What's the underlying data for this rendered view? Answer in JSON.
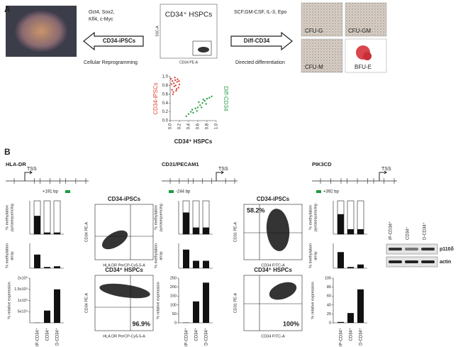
{
  "panel_a": {
    "label": "A",
    "factors": [
      "Oct4, Sox2,",
      "Klf4, c-Myc"
    ],
    "reprogram_arrow": "CD34-iPSCs",
    "reprogram_caption": "Cellular Reprogramming",
    "source_title": "CD34⁺ HSPCs",
    "source_x_label": "CD34 PE-A",
    "source_y_label": "SSC-A",
    "cytokines": "SCF,GM-CSF, IL-3, Epo",
    "diff_arrow": "Diff-CD34",
    "diff_caption": "Directed differentiation",
    "colonies": [
      "CFU-G",
      "CFU-GM",
      "CFU-M",
      "BFU-E"
    ],
    "chart_data": {
      "type": "scatter",
      "x_label": "CD34⁺ HSPCs",
      "xlim": [
        0,
        1
      ],
      "ylim": [
        0,
        1
      ],
      "xticks": [
        {
          "value": 0,
          "label": "0.0"
        },
        {
          "value": 0.2,
          "label": "0.2"
        },
        {
          "value": 0.4,
          "label": "0.4"
        },
        {
          "value": 0.6,
          "label": "0.6"
        },
        {
          "value": 0.8,
          "label": "0.8"
        },
        {
          "value": 1,
          "label": "1.0"
        }
      ],
      "yticks": [
        {
          "value": 0,
          "label": "0.0"
        },
        {
          "value": 0.2,
          "label": "0.2"
        },
        {
          "value": 0.4,
          "label": "0.4"
        },
        {
          "value": 0.6,
          "label": "0.6"
        },
        {
          "value": 0.8,
          "label": "0.8"
        },
        {
          "value": 1,
          "label": "1.0"
        }
      ],
      "series": [
        {
          "name": "CD34-iPSCs",
          "color": "#e0443a",
          "x": [
            0.02,
            0.05,
            0.08,
            0.1,
            0.12,
            0.15,
            0.18,
            0.04,
            0.07,
            0.11,
            0.14,
            0.2,
            0.06,
            0.09,
            0.16,
            0.03,
            0.13,
            0.19
          ],
          "y": [
            0.95,
            0.9,
            0.85,
            0.98,
            0.8,
            0.88,
            0.75,
            0.7,
            0.65,
            0.92,
            0.72,
            0.82,
            0.6,
            0.78,
            0.94,
            0.83,
            0.68,
            0.9
          ]
        },
        {
          "name": "Diff-CD34",
          "color": "#2ea04b",
          "x": [
            0.35,
            0.4,
            0.45,
            0.5,
            0.55,
            0.6,
            0.65,
            0.7,
            0.75,
            0.8,
            0.85,
            0.9,
            0.48,
            0.58,
            0.68,
            0.78,
            0.62,
            0.72
          ],
          "y": [
            0.1,
            0.15,
            0.2,
            0.18,
            0.28,
            0.3,
            0.35,
            0.4,
            0.45,
            0.5,
            0.52,
            0.55,
            0.25,
            0.22,
            0.3,
            0.38,
            0.42,
            0.48
          ]
        }
      ]
    }
  },
  "panel_b": {
    "label": "B",
    "bar_y_labels": {
      "pyrosequencing": [
        "% methylation",
        "pyrosequencing"
      ],
      "array": [
        "% methylation",
        "array"
      ],
      "expression": [
        "% relative expression"
      ]
    },
    "categories": [
      "IP-CD34⁺",
      "CD34⁺",
      "D-CD34⁺"
    ],
    "genes": [
      {
        "name": "HLA-DR",
        "tss": "TSS",
        "site": "+191 bp",
        "pyrosequencing": {
          "values": [
            55,
            5,
            5
          ],
          "ylim": [
            0,
            100
          ]
        },
        "array": {
          "values": [
            55,
            5,
            8
          ],
          "ylim": [
            0,
            100
          ]
        },
        "expression": {
          "values": [
            1000,
            55000,
            150000
          ],
          "ylim": [
            0,
            200000
          ],
          "yticks": [
            {
              "value": 50000,
              "label": "5x10⁴"
            },
            {
              "value": 100000,
              "label": "1x10⁵"
            },
            {
              "value": 150000,
              "label": "1.5x10⁵"
            },
            {
              "value": 200000,
              "label": "2x10⁵"
            }
          ]
        },
        "flow": [
          {
            "title": "CD34-iPSCs",
            "x_label": "HLA DR PerCP-Cy5-5-A",
            "y_label": "CD34 PE-A"
          },
          {
            "title": "CD34⁺ HSPCs",
            "x_label": "HLA DR PerCP-Cy5-5-A",
            "y_label": "CD34 PE-A",
            "percent": "96.9%",
            "percent_corner": "lower right"
          }
        ]
      },
      {
        "name": "CD31/PECAM1",
        "tss": "TSS",
        "site": "-244 bp",
        "pyrosequencing": {
          "values": [
            65,
            20,
            20
          ],
          "ylim": [
            0,
            100
          ]
        },
        "array": {
          "values": [
            75,
            30,
            30
          ],
          "ylim": [
            0,
            100
          ]
        },
        "expression": {
          "values": [
            2,
            120,
            225
          ],
          "ylim": [
            0,
            250
          ],
          "yticks": [
            0,
            50,
            100,
            150,
            200,
            250
          ]
        },
        "flow": [
          {
            "title": "CD34-iPSCs",
            "x_label": "CD34 FITC-A",
            "y_label": "CD31 PE-A",
            "percent": "58.2%",
            "percent_corner": "upper left"
          },
          {
            "title": "CD34⁺ HSPCs",
            "x_label": "CD34 FITC-A",
            "y_label": "CD31 PE-A",
            "percent": "100%",
            "percent_corner": "lower right"
          }
        ]
      },
      {
        "name": "PIK3CD",
        "tss": "TSS",
        "site": "+392 bp",
        "pyrosequencing": {
          "values": [
            60,
            15,
            15
          ],
          "ylim": [
            0,
            100
          ]
        },
        "array": {
          "values": [
            65,
            5,
            15
          ],
          "ylim": [
            0,
            100
          ]
        },
        "expression": {
          "values": [
            2,
            22,
            75
          ],
          "ylim": [
            0,
            100
          ],
          "yticks": [
            0,
            20,
            40,
            60,
            80,
            100
          ]
        },
        "western": {
          "lanes": [
            "IP-CD34⁺",
            "CD34⁺",
            "D-CD34⁺"
          ],
          "bands": [
            "p110δ",
            "actin"
          ]
        }
      }
    ]
  }
}
